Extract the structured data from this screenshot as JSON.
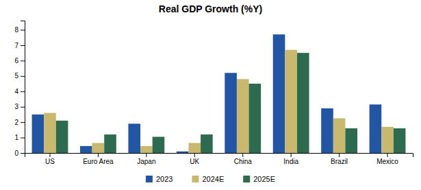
{
  "chart_data": {
    "type": "bar",
    "title": "Real GDP Growth (%Y)",
    "categories": [
      "US",
      "Euro Area",
      "Japan",
      "UK",
      "China",
      "India",
      "Brazil",
      "Mexico"
    ],
    "series": [
      {
        "name": "2023",
        "color": "#2255a4",
        "values": [
          2.5,
          0.45,
          1.9,
          0.1,
          5.2,
          7.7,
          2.9,
          3.15
        ]
      },
      {
        "name": "2024E",
        "color": "#c8b96e",
        "values": [
          2.6,
          0.65,
          0.45,
          0.65,
          4.8,
          6.7,
          2.25,
          1.7
        ]
      },
      {
        "name": "2025E",
        "color": "#2d6b50",
        "values": [
          2.1,
          1.2,
          1.05,
          1.2,
          4.5,
          6.5,
          1.6,
          1.6
        ]
      }
    ],
    "ylim": [
      0,
      8.6
    ],
    "yticks": [
      0,
      1,
      2,
      3,
      4,
      5,
      6,
      7,
      8
    ],
    "grid": false,
    "legend": "bottom"
  }
}
